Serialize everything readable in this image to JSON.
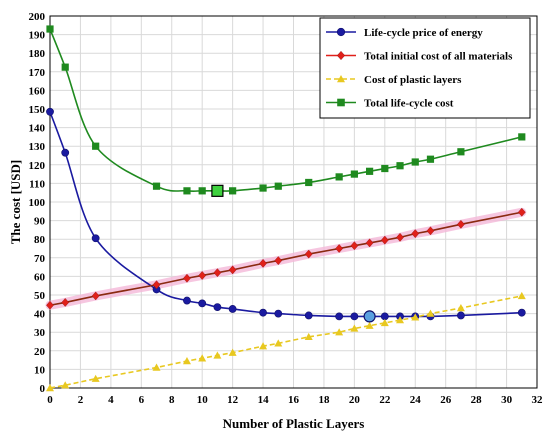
{
  "chart_data": {
    "type": "line",
    "title": "",
    "xlabel": "Number of Plastic Layers",
    "ylabel": "The cost [USD]",
    "xlim": [
      0,
      32
    ],
    "ylim": [
      0,
      200
    ],
    "xticks": [
      0,
      2,
      4,
      6,
      8,
      10,
      12,
      14,
      16,
      18,
      20,
      22,
      24,
      26,
      28,
      30,
      32
    ],
    "yticks": [
      0,
      10,
      20,
      30,
      40,
      50,
      60,
      70,
      80,
      90,
      100,
      110,
      120,
      130,
      140,
      150,
      160,
      170,
      180,
      190,
      200
    ],
    "grid": true,
    "legend_position": "top-right",
    "series": [
      {
        "name": "Life-cycle price of energy",
        "color": "#1a1aa0",
        "marker": "circle",
        "line": "solid",
        "x": [
          0,
          1,
          3,
          7,
          9,
          10,
          11,
          12,
          14,
          15,
          17,
          19,
          20,
          21,
          22,
          23,
          24,
          25,
          27,
          31
        ],
        "y": [
          148.5,
          126.5,
          80.5,
          53,
          47,
          45.5,
          43.5,
          42.5,
          40.5,
          40,
          39,
          38.5,
          38.5,
          38.5,
          38.5,
          38.5,
          38.5,
          38.5,
          39,
          40.5
        ]
      },
      {
        "name": "Total initial cost of all materials",
        "color": "#e0201a",
        "marker": "diamond",
        "line": "solid",
        "x": [
          0,
          1,
          3,
          7,
          9,
          10,
          11,
          12,
          14,
          15,
          17,
          19,
          20,
          21,
          22,
          23,
          24,
          25,
          27,
          31
        ],
        "y": [
          44.5,
          46,
          49.5,
          55.5,
          59,
          60.5,
          62,
          63.5,
          67,
          68.5,
          72,
          75,
          76.5,
          78,
          79.5,
          81,
          83,
          84.5,
          88,
          94.5
        ]
      },
      {
        "name": "Cost of plastic layers",
        "color": "#e8c820",
        "marker": "triangle",
        "line": "dashed",
        "x": [
          0,
          1,
          3,
          7,
          9,
          10,
          11,
          12,
          14,
          15,
          17,
          19,
          20,
          21,
          22,
          23,
          24,
          25,
          27,
          31
        ],
        "y": [
          0,
          1.5,
          5,
          11,
          14.5,
          16,
          17.5,
          19,
          22.5,
          24,
          27.5,
          30,
          32,
          33.5,
          35,
          36.5,
          38,
          40,
          43,
          49.5
        ]
      },
      {
        "name": "Total life-cycle cost",
        "color": "#1f8a1f",
        "marker": "square",
        "line": "solid",
        "x": [
          0,
          1,
          3,
          7,
          9,
          10,
          11,
          12,
          14,
          15,
          17,
          19,
          20,
          21,
          22,
          23,
          24,
          25,
          27,
          31
        ],
        "y": [
          193,
          172.5,
          130,
          108.5,
          106,
          106,
          106,
          106,
          107.5,
          108.5,
          110.5,
          113.5,
          115,
          116.5,
          118,
          119.5,
          121.5,
          123,
          127,
          135
        ]
      }
    ],
    "highlights": [
      {
        "series": "Total life-cycle cost",
        "x": 11,
        "y": 106,
        "color": "#3fd23f"
      },
      {
        "series": "Life-cycle price of energy",
        "x": 21,
        "y": 38.5,
        "color": "#5aa0e0"
      }
    ],
    "shaded_band": {
      "series": "Total initial cost of all materials",
      "color": "#f4b8d8"
    }
  }
}
